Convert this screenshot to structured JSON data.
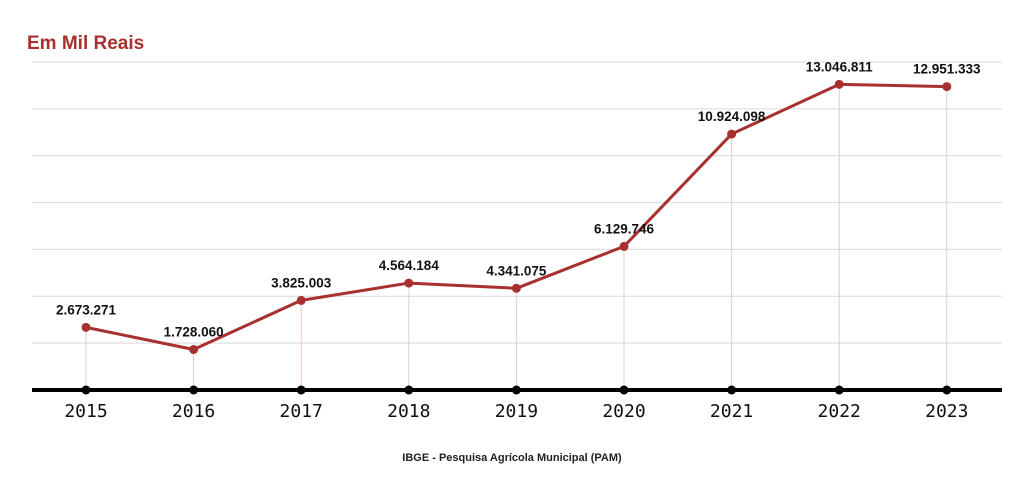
{
  "header": {
    "unit_label": "Em Mil Reais"
  },
  "footer": {
    "source": "IBGE - Pesquisa Agrícola Municipal (PAM)"
  },
  "colors": {
    "line": "#a8302f",
    "axis": "#000000",
    "grid": "#d9d9d9",
    "guide": "#e9c9c9"
  },
  "chart_data": {
    "type": "line",
    "title": "",
    "xlabel": "",
    "ylabel": "Em Mil Reais",
    "categories": [
      "2015",
      "2016",
      "2017",
      "2018",
      "2019",
      "2020",
      "2021",
      "2022",
      "2023"
    ],
    "values": [
      2673271,
      1728060,
      3825003,
      4564184,
      4341075,
      6129746,
      10924098,
      13046811,
      12951333
    ],
    "value_labels": [
      "2.673.271",
      "1.728.060",
      "3.825.003",
      "4.564.184",
      "4.341.075",
      "6.129.746",
      "10.924.098",
      "13.046.811",
      "12.951.333"
    ],
    "ylim": [
      0,
      14000000
    ],
    "grid": true,
    "legend": "none"
  }
}
